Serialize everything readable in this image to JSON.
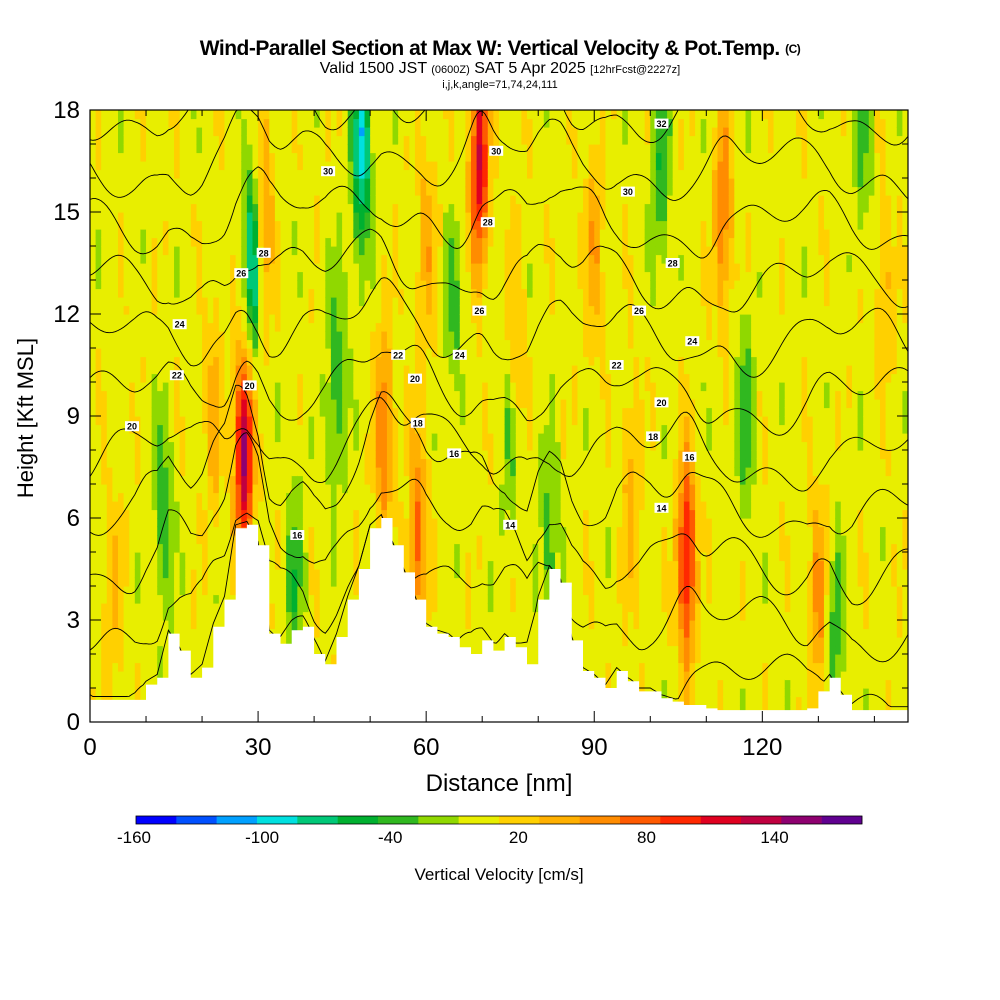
{
  "header": {
    "title": "Wind-Parallel Section at Max W: Vertical Velocity & Pot.Temp.",
    "title_tag": "(C)",
    "subtitle_main_a": "Valid 1500 JST",
    "subtitle_small_a": "(0600Z)",
    "subtitle_main_b": "SAT 5 Apr 2025",
    "subtitle_small_b": "[12hrFcst@2227z]",
    "subtitle2": "i,j,k,angle=71,74,24,111"
  },
  "chart_data": {
    "type": "heatmap",
    "xlabel": "Distance [nm]",
    "ylabel": "Height [Kft MSL]",
    "xlim": [
      0,
      146
    ],
    "ylim": [
      0,
      18
    ],
    "x_ticks": [
      0,
      30,
      60,
      90,
      120
    ],
    "y_ticks": [
      0,
      3,
      6,
      9,
      12,
      15,
      18
    ],
    "colorbar": {
      "label": "Vertical Velocity [cm/s]",
      "min": -160,
      "max": 180,
      "step": 20,
      "tick_labels": [
        -160,
        -100,
        -40,
        20,
        80,
        140
      ],
      "colors": [
        "#0000ff",
        "#0050ff",
        "#00a0ff",
        "#00e0e0",
        "#00c878",
        "#00b030",
        "#30b820",
        "#90d800",
        "#e8ee00",
        "#ffd000",
        "#ffb000",
        "#ff8c00",
        "#ff5a00",
        "#ff2800",
        "#e00020",
        "#c00040",
        "#8e0070",
        "#600090"
      ]
    },
    "terrain": [
      [
        0,
        0.65
      ],
      [
        2,
        0.65
      ],
      [
        4,
        0.65
      ],
      [
        6,
        0.65
      ],
      [
        8,
        0.65
      ],
      [
        10,
        1.1
      ],
      [
        12,
        1.3
      ],
      [
        14,
        2.6
      ],
      [
        16,
        2.1
      ],
      [
        18,
        1.3
      ],
      [
        20,
        1.6
      ],
      [
        22,
        2.8
      ],
      [
        24,
        3.6
      ],
      [
        26,
        5.7
      ],
      [
        28,
        5.8
      ],
      [
        30,
        5.2
      ],
      [
        32,
        2.6
      ],
      [
        34,
        2.3
      ],
      [
        36,
        2.7
      ],
      [
        38,
        2.8
      ],
      [
        40,
        2.0
      ],
      [
        42,
        1.7
      ],
      [
        44,
        2.5
      ],
      [
        46,
        3.6
      ],
      [
        48,
        4.5
      ],
      [
        50,
        5.7
      ],
      [
        52,
        6.0
      ],
      [
        54,
        5.2
      ],
      [
        56,
        4.4
      ],
      [
        58,
        3.6
      ],
      [
        60,
        2.8
      ],
      [
        62,
        2.6
      ],
      [
        64,
        2.5
      ],
      [
        66,
        2.2
      ],
      [
        68,
        2.0
      ],
      [
        70,
        2.4
      ],
      [
        72,
        2.1
      ],
      [
        74,
        2.5
      ],
      [
        76,
        2.2
      ],
      [
        78,
        1.7
      ],
      [
        80,
        3.6
      ],
      [
        82,
        4.5
      ],
      [
        84,
        4.1
      ],
      [
        86,
        2.4
      ],
      [
        88,
        1.5
      ],
      [
        90,
        1.3
      ],
      [
        92,
        1.0
      ],
      [
        94,
        1.5
      ],
      [
        96,
        1.2
      ],
      [
        98,
        0.9
      ],
      [
        100,
        0.9
      ],
      [
        102,
        0.7
      ],
      [
        104,
        0.6
      ],
      [
        106,
        0.5
      ],
      [
        108,
        0.5
      ],
      [
        110,
        0.4
      ],
      [
        112,
        0.35
      ],
      [
        114,
        0.35
      ],
      [
        116,
        0.35
      ],
      [
        118,
        0.35
      ],
      [
        120,
        0.35
      ],
      [
        122,
        0.35
      ],
      [
        124,
        0.35
      ],
      [
        126,
        0.35
      ],
      [
        128,
        0.4
      ],
      [
        130,
        0.9
      ],
      [
        132,
        1.3
      ],
      [
        134,
        0.8
      ],
      [
        136,
        0.35
      ],
      [
        138,
        0.35
      ],
      [
        140,
        0.35
      ],
      [
        142,
        0.35
      ],
      [
        144,
        0.35
      ],
      [
        146,
        0.35
      ]
    ],
    "updrafts": [
      {
        "x": 27.5,
        "z": 8.0,
        "w": 155
      },
      {
        "x": 69.5,
        "z": 16.5,
        "w": 130
      },
      {
        "x": 106.5,
        "z": 4.8,
        "w": 120
      },
      {
        "x": 58.5,
        "z": 5.5,
        "w": 75
      },
      {
        "x": 52.5,
        "z": 8.5,
        "w": 70
      },
      {
        "x": 31.0,
        "z": 15.0,
        "w": 60
      },
      {
        "x": 113.0,
        "z": 15.0,
        "w": 70
      },
      {
        "x": 130.0,
        "z": 3.5,
        "w": 55
      },
      {
        "x": 90.0,
        "z": 14.0,
        "w": 45
      },
      {
        "x": 60.0,
        "z": 14.0,
        "w": 40
      },
      {
        "x": 22.0,
        "z": 9.0,
        "w": 40
      },
      {
        "x": 96.5,
        "z": 7.0,
        "w": 40
      },
      {
        "x": 76.0,
        "z": 11.0,
        "w": 35
      },
      {
        "x": 4.0,
        "z": 4.0,
        "w": 30
      },
      {
        "x": 142.0,
        "z": 13.0,
        "w": 30
      }
    ],
    "downdrafts": [
      {
        "x": 48.5,
        "z": 17.0,
        "w": -110
      },
      {
        "x": 29.0,
        "z": 13.5,
        "w": -95
      },
      {
        "x": 13.0,
        "z": 6.0,
        "w": -50
      },
      {
        "x": 44.0,
        "z": 10.0,
        "w": -50
      },
      {
        "x": 36.5,
        "z": 4.0,
        "w": -45
      },
      {
        "x": 82.0,
        "z": 5.0,
        "w": -45
      },
      {
        "x": 102.0,
        "z": 16.5,
        "w": -50
      },
      {
        "x": 117.0,
        "z": 9.0,
        "w": -45
      },
      {
        "x": 133.0,
        "z": 2.5,
        "w": -45
      },
      {
        "x": 75.0,
        "z": 8.0,
        "w": -35
      },
      {
        "x": 65.0,
        "z": 12.0,
        "w": -35
      },
      {
        "x": 138.0,
        "z": 17.0,
        "w": -35
      }
    ],
    "isentropes": [
      10,
      12,
      14,
      16,
      18,
      20,
      22,
      24,
      26,
      28,
      30,
      32,
      34
    ],
    "isentrope_labels": [
      {
        "value": "32",
        "x": 102.0,
        "z": 17.6
      },
      {
        "value": "30",
        "x": 72.5,
        "z": 16.8
      },
      {
        "value": "30",
        "x": 42.5,
        "z": 16.2
      },
      {
        "value": "30",
        "x": 96.0,
        "z": 15.6
      },
      {
        "value": "28",
        "x": 71.0,
        "z": 14.7
      },
      {
        "value": "28",
        "x": 31.0,
        "z": 13.8
      },
      {
        "value": "28",
        "x": 104.0,
        "z": 13.5
      },
      {
        "value": "26",
        "x": 27.0,
        "z": 13.2
      },
      {
        "value": "26",
        "x": 98.0,
        "z": 12.1
      },
      {
        "value": "26",
        "x": 69.5,
        "z": 12.1
      },
      {
        "value": "24",
        "x": 16.0,
        "z": 11.7
      },
      {
        "value": "24",
        "x": 66.0,
        "z": 10.8
      },
      {
        "value": "24",
        "x": 107.5,
        "z": 11.2
      },
      {
        "value": "22",
        "x": 55.0,
        "z": 10.8
      },
      {
        "value": "22",
        "x": 94.0,
        "z": 10.5
      },
      {
        "value": "22",
        "x": 15.5,
        "z": 10.2
      },
      {
        "value": "20",
        "x": 58.0,
        "z": 10.1
      },
      {
        "value": "20",
        "x": 28.5,
        "z": 9.9
      },
      {
        "value": "20",
        "x": 102.0,
        "z": 9.4
      },
      {
        "value": "20",
        "x": 7.5,
        "z": 8.7
      },
      {
        "value": "18",
        "x": 58.5,
        "z": 8.8
      },
      {
        "value": "18",
        "x": 100.5,
        "z": 8.4
      },
      {
        "value": "16",
        "x": 65.0,
        "z": 7.9
      },
      {
        "value": "16",
        "x": 107.0,
        "z": 7.8
      },
      {
        "value": "16",
        "x": 37.0,
        "z": 5.5
      },
      {
        "value": "14",
        "x": 102.0,
        "z": 6.3
      },
      {
        "value": "14",
        "x": 75.0,
        "z": 5.8
      }
    ]
  }
}
